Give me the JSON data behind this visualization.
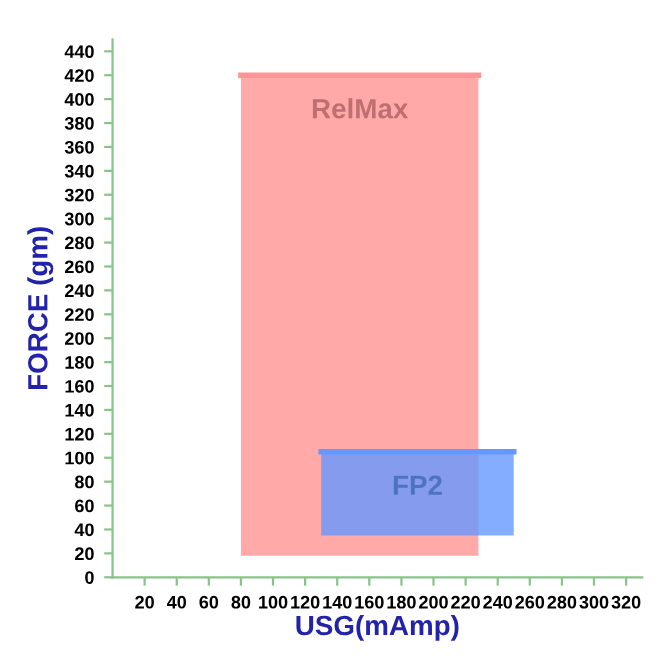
{
  "chart_data": {
    "type": "line",
    "xlabel": "USG(mAmp)",
    "ylabel": "FORCE (gm)",
    "xlim": [
      0,
      330
    ],
    "ylim": [
      0,
      450
    ],
    "xticks": [
      20,
      40,
      60,
      80,
      100,
      120,
      140,
      160,
      180,
      200,
      220,
      240,
      260,
      280,
      300,
      320
    ],
    "yticks": [
      {
        "value": 0,
        "label": "0"
      },
      20,
      40,
      60,
      80,
      100,
      120,
      140,
      160,
      180,
      200,
      220,
      240,
      260,
      280,
      300,
      320,
      340,
      360,
      380,
      400,
      420,
      440
    ],
    "grid": false,
    "legend": false,
    "series": [
      {
        "name": "RelMax",
        "color": "#ff9494",
        "x": [
          80,
          228
        ],
        "lower": [
          18,
          18
        ],
        "upper": [
          420,
          420
        ],
        "values": [
          420,
          420
        ]
      },
      {
        "name": "FP2",
        "color": "#6699ff",
        "x": [
          130,
          250
        ],
        "lower": [
          35,
          35
        ],
        "upper": [
          105,
          105
        ],
        "values": [
          105,
          105
        ]
      }
    ]
  }
}
